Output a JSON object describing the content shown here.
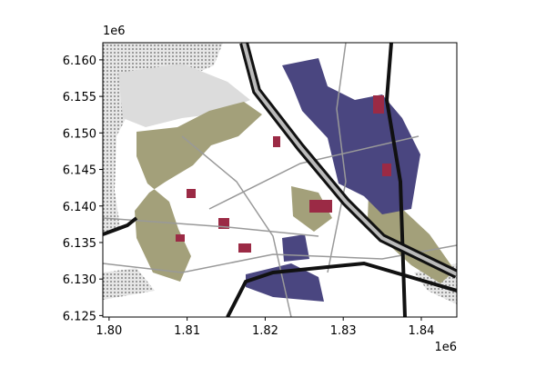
{
  "chart_data": {
    "type": "map",
    "xlim": [
      1799200,
      1844550
    ],
    "ylim": [
      6124800,
      6162350
    ],
    "xticks": [
      {
        "value": 1800000,
        "label": "1.80"
      },
      {
        "value": 1810000,
        "label": "1.81"
      },
      {
        "value": 1820000,
        "label": "1.82"
      },
      {
        "value": 1830000,
        "label": "1.83"
      },
      {
        "value": 1840000,
        "label": "1.84"
      }
    ],
    "yticks": [
      {
        "value": 6125000,
        "label": "6.125"
      },
      {
        "value": 6130000,
        "label": "6.130"
      },
      {
        "value": 6135000,
        "label": "6.135"
      },
      {
        "value": 6140000,
        "label": "6.140"
      },
      {
        "value": 6145000,
        "label": "6.145"
      },
      {
        "value": 6150000,
        "label": "6.150"
      },
      {
        "value": 6155000,
        "label": "6.155"
      },
      {
        "value": 6160000,
        "label": "6.160"
      }
    ],
    "x_offset": "1e6",
    "y_offset": "1e6"
  }
}
